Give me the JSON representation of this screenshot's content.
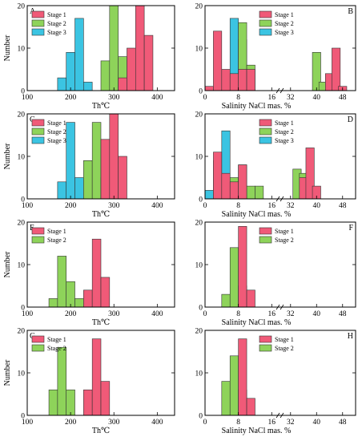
{
  "figure": {
    "colors": {
      "stage1": "#f05a78",
      "stage2": "#8ed35a",
      "stage3": "#3bc4e2"
    }
  },
  "chart_data": [
    {
      "id": "A",
      "letter": "A",
      "type": "bar",
      "kind": "th",
      "ylabel": "Number",
      "xlabel": "Th℃",
      "xlim": [
        100,
        440
      ],
      "ylim": [
        0,
        20
      ],
      "xticks": [
        100,
        200,
        300,
        400
      ],
      "yticks": [
        0,
        10,
        20
      ],
      "legend": [
        "Stage 1",
        "Stage 2",
        "Stage 3"
      ],
      "series": [
        {
          "name": "Stage 1",
          "x": [
            320,
            340,
            360,
            380
          ],
          "values": [
            3,
            10,
            20,
            13
          ]
        },
        {
          "name": "Stage 2",
          "x": [
            280,
            300,
            320
          ],
          "values": [
            7,
            20,
            8
          ]
        },
        {
          "name": "Stage 3",
          "x": [
            180,
            200,
            220,
            240
          ],
          "values": [
            3,
            9,
            17,
            2
          ]
        }
      ]
    },
    {
      "id": "B",
      "letter": "B",
      "type": "bar",
      "kind": "salinity",
      "xlabel": "Salinity  NaCl   mas. %",
      "ylim": [
        0,
        20
      ],
      "xticks": [
        "0",
        "8",
        "16",
        "32",
        "40",
        "48"
      ],
      "yticks": [
        0,
        10,
        20
      ],
      "legend": [
        "Stage 1",
        "Stage 2",
        "Stage 3"
      ],
      "series": [
        {
          "name": "Stage 1",
          "x": [
            1,
            3,
            5,
            7,
            9,
            11,
            44,
            46,
            48
          ],
          "values": [
            1,
            14,
            5,
            4,
            5,
            5,
            4,
            10,
            1
          ]
        },
        {
          "name": "Stage 2",
          "x": [
            5,
            7,
            9,
            11,
            40,
            42,
            44
          ],
          "values": [
            2,
            3,
            16,
            6,
            9,
            2,
            4
          ]
        },
        {
          "name": "Stage 3",
          "x": [
            5,
            7,
            9
          ],
          "values": [
            3,
            17,
            12
          ]
        }
      ]
    },
    {
      "id": "C",
      "letter": "C",
      "type": "bar",
      "kind": "th",
      "ylabel": "Number",
      "xlabel": "Th℃",
      "xlim": [
        100,
        440
      ],
      "ylim": [
        0,
        20
      ],
      "xticks": [
        100,
        200,
        300,
        400
      ],
      "yticks": [
        0,
        10,
        20
      ],
      "legend": [
        "Stage 1",
        "Stage 2",
        "Stage 3"
      ],
      "series": [
        {
          "name": "Stage 1",
          "x": [
            280,
            300,
            320
          ],
          "values": [
            14,
            20,
            10
          ]
        },
        {
          "name": "Stage 2",
          "x": [
            240,
            260,
            280
          ],
          "values": [
            9,
            18,
            5
          ]
        },
        {
          "name": "Stage 3",
          "x": [
            180,
            200,
            220
          ],
          "values": [
            4,
            18,
            5
          ]
        }
      ]
    },
    {
      "id": "D",
      "letter": "D",
      "type": "bar",
      "kind": "salinity",
      "xlabel": "Salinity  NaCl   mas. %",
      "ylim": [
        0,
        20
      ],
      "xticks": [
        "0",
        "8",
        "16",
        "32",
        "40",
        "48"
      ],
      "yticks": [
        0,
        10,
        20
      ],
      "legend": [
        "Stage 1",
        "Stage 2",
        "Stage 3"
      ],
      "series": [
        {
          "name": "Stage 1",
          "x": [
            3,
            5,
            7,
            9,
            36,
            38,
            40
          ],
          "values": [
            11,
            6,
            4,
            8,
            5,
            12,
            3
          ]
        },
        {
          "name": "Stage 2",
          "x": [
            7,
            9,
            11,
            13,
            34,
            36
          ],
          "values": [
            5,
            8,
            3,
            3,
            7,
            6
          ]
        },
        {
          "name": "Stage 3",
          "x": [
            1,
            3,
            5,
            7
          ],
          "values": [
            2,
            9,
            16,
            2
          ]
        }
      ]
    },
    {
      "id": "E",
      "letter": "E",
      "type": "bar",
      "kind": "th",
      "ylabel": "Number",
      "xlabel": "Th℃",
      "xlim": [
        100,
        440
      ],
      "ylim": [
        0,
        20
      ],
      "xticks": [
        100,
        200,
        300,
        400
      ],
      "yticks": [
        0,
        10,
        20
      ],
      "legend": [
        "Stage 1",
        "Stage 2"
      ],
      "series": [
        {
          "name": "Stage 1",
          "x": [
            240,
            260,
            280
          ],
          "values": [
            4,
            16,
            7
          ]
        },
        {
          "name": "Stage 2",
          "x": [
            160,
            180,
            200,
            220
          ],
          "values": [
            2,
            12,
            6,
            2
          ]
        }
      ]
    },
    {
      "id": "F",
      "letter": "F",
      "type": "bar",
      "kind": "salinity",
      "xlabel": "Salinity  NaCl   mas. %",
      "ylim": [
        0,
        20
      ],
      "xticks": [
        "0",
        "8",
        "16",
        "32",
        "40",
        "48"
      ],
      "yticks": [
        0,
        10,
        20
      ],
      "legend": [
        "Stage 1",
        "Stage 2"
      ],
      "series": [
        {
          "name": "Stage 1",
          "x": [
            9,
            11
          ],
          "values": [
            19,
            4
          ]
        },
        {
          "name": "Stage 2",
          "x": [
            5,
            7,
            9
          ],
          "values": [
            3,
            14,
            5
          ]
        }
      ]
    },
    {
      "id": "G",
      "letter": "G",
      "type": "bar",
      "kind": "th",
      "ylabel": "Number",
      "xlabel": "Th℃",
      "xlim": [
        100,
        440
      ],
      "ylim": [
        0,
        20
      ],
      "xticks": [
        100,
        200,
        300,
        400
      ],
      "yticks": [
        0,
        10,
        20
      ],
      "legend": [
        "Stage 1",
        "Stage 2"
      ],
      "series": [
        {
          "name": "Stage 1",
          "x": [
            240,
            260,
            280
          ],
          "values": [
            6,
            18,
            8
          ]
        },
        {
          "name": "Stage 2",
          "x": [
            160,
            180,
            200
          ],
          "values": [
            6,
            16,
            6
          ]
        }
      ]
    },
    {
      "id": "H",
      "letter": "H",
      "type": "bar",
      "kind": "salinity",
      "xlabel": "Salinity  NaCl   mas. %",
      "ylim": [
        0,
        20
      ],
      "xticks": [
        "0",
        "8",
        "16",
        "32",
        "40",
        "48"
      ],
      "yticks": [
        0,
        10,
        20
      ],
      "legend": [
        "Stage 1",
        "Stage 2"
      ],
      "series": [
        {
          "name": "Stage 1",
          "x": [
            9,
            11
          ],
          "values": [
            18,
            4
          ]
        },
        {
          "name": "Stage 2",
          "x": [
            5,
            7,
            9
          ],
          "values": [
            8,
            14,
            6
          ]
        }
      ]
    }
  ]
}
